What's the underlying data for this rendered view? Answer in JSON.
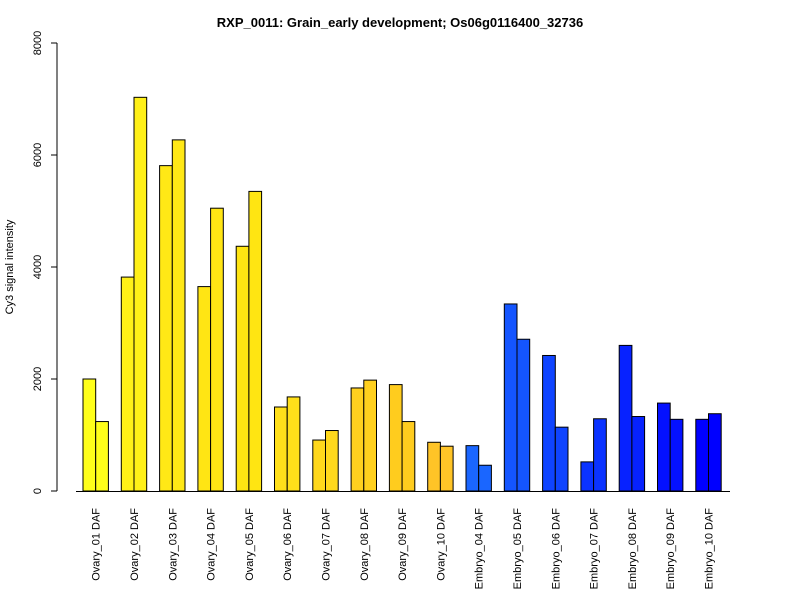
{
  "chart_data": {
    "type": "bar",
    "title": "RXP_0011: Grain_early development; Os06g0116400_32736",
    "xlabel": "",
    "ylabel": "Cy3 signal intensity",
    "ylim": [
      0,
      8000
    ],
    "yticks": [
      0,
      2000,
      4000,
      6000,
      8000
    ],
    "grid": false,
    "legend": "none",
    "categories": [
      "Ovary_01 DAF",
      "Ovary_02 DAF",
      "Ovary_03 DAF",
      "Ovary_04 DAF",
      "Ovary_05 DAF",
      "Ovary_06 DAF",
      "Ovary_07 DAF",
      "Ovary_08 DAF",
      "Ovary_09 DAF",
      "Ovary_10 DAF",
      "Embryo_04 DAF",
      "Embryo_05 DAF",
      "Embryo_06 DAF",
      "Embryo_07 DAF",
      "Embryo_08 DAF",
      "Embryo_09 DAF",
      "Embryo_10 DAF"
    ],
    "series": [
      {
        "values": [
          2000,
          3820,
          5810,
          3650,
          4370,
          1500,
          910,
          1840,
          1900,
          870,
          810,
          3340,
          2420,
          520,
          2600,
          1570,
          1280
        ]
      },
      {
        "values": [
          1240,
          7030,
          6270,
          5050,
          5350,
          1680,
          1080,
          1980,
          1240,
          800,
          460,
          2710,
          1140,
          1290,
          1330,
          1280,
          1380
        ]
      }
    ],
    "colors": [
      "#FFFF1A",
      "#FFF018",
      "#FFE816",
      "#FFE514",
      "#FFE512",
      "#FFDF1A",
      "#FFD81C",
      "#FFD01E",
      "#FFCC1E",
      "#FFC427",
      "#1A66FF",
      "#1455FF",
      "#0F44FF",
      "#0B33FF",
      "#0722FF",
      "#0411FF",
      "#0000FF"
    ]
  }
}
